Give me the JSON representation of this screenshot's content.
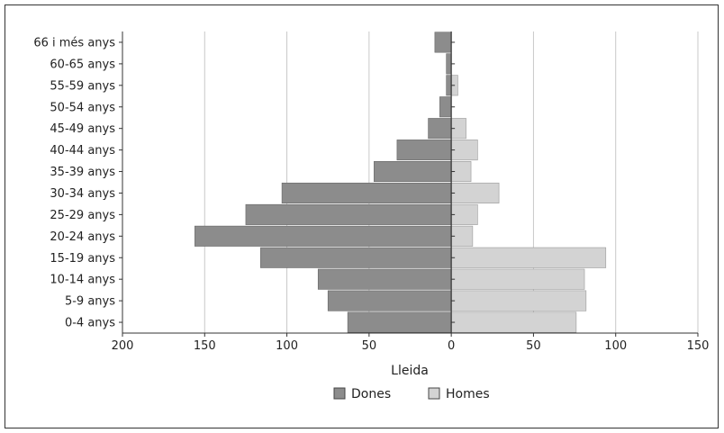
{
  "chart_data": {
    "type": "bar",
    "orientation": "horizontal-population-pyramid",
    "xlabel": "Lleida",
    "categories": [
      "66 i més anys",
      "60-65 anys",
      "55-59 anys",
      "50-54 anys",
      "45-49 anys",
      "40-44 anys",
      "35-39 anys",
      "30-34 anys",
      "25-29 anys",
      "20-24 anys",
      "15-19 anys",
      "10-14 anys",
      "5-9 anys",
      "0-4 anys"
    ],
    "series": [
      {
        "name": "Dones",
        "color": "#8c8c8c",
        "values": [
          10,
          3,
          3,
          7,
          14,
          33,
          47,
          103,
          125,
          156,
          116,
          81,
          75,
          63
        ]
      },
      {
        "name": "Homes",
        "color": "#d3d3d3",
        "values": [
          0,
          0,
          4,
          0,
          9,
          16,
          12,
          29,
          16,
          13,
          94,
          81,
          82,
          76
        ]
      }
    ],
    "x_ticks": [
      "200",
      "150",
      "100",
      "50",
      "0",
      "50",
      "100",
      "150"
    ],
    "xlim": [
      -200,
      150
    ],
    "grid": true,
    "legend_position": "bottom-center"
  }
}
